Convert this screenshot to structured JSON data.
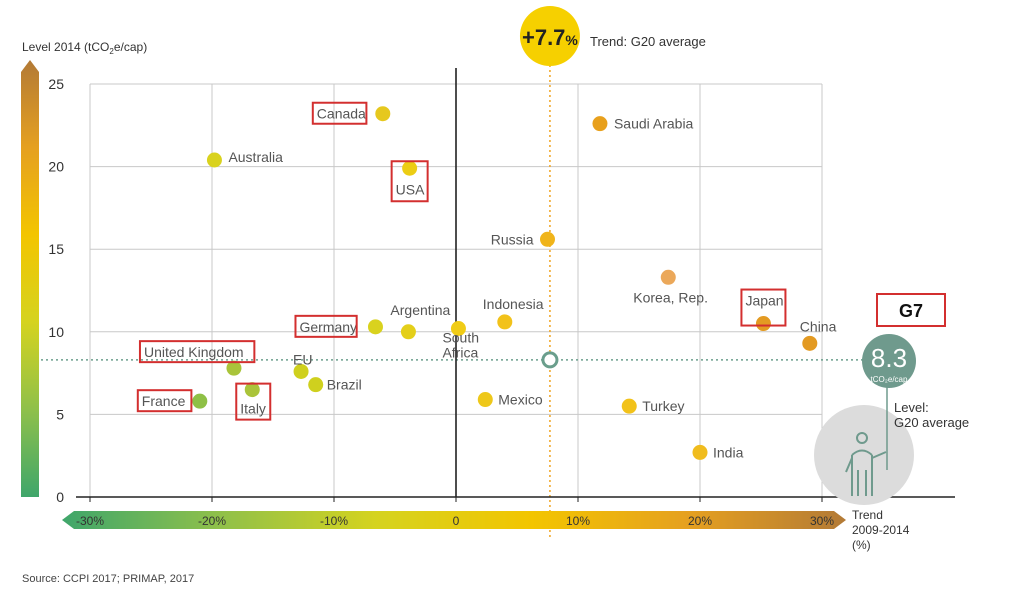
{
  "chart_data": {
    "type": "scatter",
    "ylabel_parts": [
      "Level 2014 (tCO",
      "2",
      "e/cap)"
    ],
    "xlabel_lines": [
      "Trend",
      "2009-2014",
      "(%)"
    ],
    "xlim": [
      -30,
      30
    ],
    "ylim": [
      0,
      25
    ],
    "x_ticks": [
      -30,
      -20,
      -10,
      0,
      10,
      20,
      30
    ],
    "x_tick_labels": [
      "-30%",
      "-20%",
      "-10%",
      "0",
      "10%",
      "20%",
      "30%"
    ],
    "y_ticks": [
      0,
      5,
      10,
      15,
      20,
      25
    ],
    "y_tick_labels": [
      "0",
      "5",
      "10",
      "15",
      "20",
      "25"
    ],
    "grid": true,
    "points": [
      {
        "label": "Canada",
        "x": -6,
        "y": 23.2,
        "color": "#e6c81e",
        "g7": true
      },
      {
        "label": "Australia",
        "x": -19.8,
        "y": 20.4,
        "color": "#d9d21e",
        "g7": false
      },
      {
        "label": "USA",
        "x": -3.8,
        "y": 19.9,
        "color": "#eccd14",
        "g7": true
      },
      {
        "label": "Saudi Arabia",
        "x": 11.8,
        "y": 22.6,
        "color": "#e8a01c",
        "g7": false
      },
      {
        "label": "Russia",
        "x": 7.5,
        "y": 15.6,
        "color": "#f0b41a",
        "g7": false
      },
      {
        "label": "Korea, Rep.",
        "x": 17.4,
        "y": 13.3,
        "color": "#eba85a",
        "g7": false
      },
      {
        "label": "Japan",
        "x": 25.2,
        "y": 10.5,
        "color": "#e39a22",
        "g7": true
      },
      {
        "label": "China",
        "x": 29,
        "y": 9.3,
        "color": "#e39a22",
        "g7": false
      },
      {
        "label": "Indonesia",
        "x": 4,
        "y": 10.6,
        "color": "#f2c21a",
        "g7": false
      },
      {
        "label": "Argentina",
        "x": -3.9,
        "y": 10,
        "color": "#e4cf1a",
        "g7": false
      },
      {
        "label": "South Africa",
        "x": 0.2,
        "y": 10.2,
        "color": "#f0cc16",
        "g7": false
      },
      {
        "label": "Germany",
        "x": -6.6,
        "y": 10.3,
        "color": "#d9d21e",
        "g7": true
      },
      {
        "label": "United Kingdom",
        "x": -18.2,
        "y": 7.8,
        "color": "#a9c43a",
        "g7": true
      },
      {
        "label": "EU",
        "x": -12.7,
        "y": 7.6,
        "color": "#cfd01e",
        "g7": false
      },
      {
        "label": "Brazil",
        "x": -11.5,
        "y": 6.8,
        "color": "#cfd01e",
        "g7": false
      },
      {
        "label": "Italy",
        "x": -16.7,
        "y": 6.5,
        "color": "#aac43a",
        "g7": true
      },
      {
        "label": "France",
        "x": -21,
        "y": 5.8,
        "color": "#8ec046",
        "g7": true
      },
      {
        "label": "Mexico",
        "x": 2.4,
        "y": 5.9,
        "color": "#eec81a",
        "g7": false
      },
      {
        "label": "Turkey",
        "x": 14.2,
        "y": 5.5,
        "color": "#f2c21a",
        "g7": false
      },
      {
        "label": "India",
        "x": 20,
        "y": 2.7,
        "color": "#f0bc1e",
        "g7": false
      }
    ],
    "average_trend": {
      "value": 7.7,
      "label_number": "+7.7",
      "label_unit": "%",
      "caption": "Trend: G20 average"
    },
    "average_level": {
      "value": 8.3,
      "label_number": "8.3",
      "label_unit": "tCO₂e/cap",
      "caption_lines": [
        "Level:",
        "G20 average"
      ]
    },
    "legend": {
      "g7_label": "G7"
    }
  },
  "source": "Source: CCPI 2017; PRIMAP, 2017",
  "colors": {
    "grid": "#c8c8c8",
    "zero_line": "#222222",
    "avg_trend_line": "#f0a21e",
    "avg_level_line": "#6a9e8c",
    "highlight": "#d32f2f",
    "badge_yellow": "#f6d000",
    "badge_green": "#6f9a8d",
    "gradient": [
      "#3fa66b",
      "#8fc04a",
      "#d5d31f",
      "#f3c500",
      "#e5a020",
      "#b37a36"
    ]
  }
}
